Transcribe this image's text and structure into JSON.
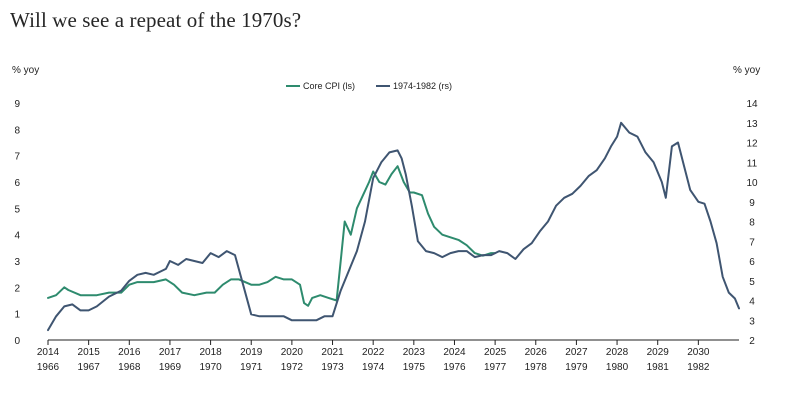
{
  "title": "Will we see a repeat of the 1970s?",
  "colors": {
    "core_cpi": "#2e8b6e",
    "seventies": "#3f5571",
    "axis": "#222222"
  },
  "chart_data": {
    "type": "line",
    "title": "Will we see a repeat of the 1970s?",
    "xlabel": "",
    "ylabel_left": "% yoy",
    "ylabel_right": "% yoy",
    "x_top_ticks": [
      "2014",
      "2015",
      "2016",
      "2017",
      "2018",
      "2019",
      "2020",
      "2021",
      "2022",
      "2023",
      "2024",
      "2025",
      "2026",
      "2027",
      "2028",
      "2029",
      "2030"
    ],
    "x_bottom_ticks": [
      "1966",
      "1967",
      "1968",
      "1969",
      "1970",
      "1971",
      "1972",
      "1973",
      "1974",
      "1975",
      "1976",
      "1977",
      "1978",
      "1979",
      "1980",
      "1981",
      "1982"
    ],
    "xlim": [
      2014,
      2031.0
    ],
    "ylim_left": [
      0,
      9
    ],
    "ylim_right": [
      2,
      14
    ],
    "yticks_left": [
      "0",
      "1",
      "2",
      "3",
      "4",
      "5",
      "6",
      "7",
      "8",
      "9"
    ],
    "yticks_right": [
      "2",
      "3",
      "4",
      "5",
      "6",
      "7",
      "8",
      "9",
      "10",
      "11",
      "12",
      "13",
      "14"
    ],
    "legend_position": "top",
    "grid": false,
    "series": [
      {
        "name": "Core CPI (ls)",
        "axis": "left",
        "x": [
          2014.0,
          2014.2,
          2014.4,
          2014.5,
          2014.8,
          2015.0,
          2015.2,
          2015.5,
          2015.8,
          2016.0,
          2016.2,
          2016.4,
          2016.6,
          2016.9,
          2017.1,
          2017.3,
          2017.6,
          2017.9,
          2018.1,
          2018.3,
          2018.5,
          2018.7,
          2019.0,
          2019.2,
          2019.4,
          2019.6,
          2019.8,
          2020.0,
          2020.2,
          2020.3,
          2020.4,
          2020.5,
          2020.7,
          2020.9,
          2021.1,
          2021.2,
          2021.3,
          2021.45,
          2021.6,
          2021.75,
          2021.9,
          2022.0,
          2022.15,
          2022.3,
          2022.45,
          2022.6,
          2022.75,
          2022.9,
          2023.0,
          2023.2,
          2023.35,
          2023.5,
          2023.7,
          2023.9,
          2024.1,
          2024.3,
          2024.5,
          2024.7,
          2024.9,
          2025.0
        ],
        "values": [
          1.6,
          1.7,
          2.0,
          1.9,
          1.7,
          1.7,
          1.7,
          1.8,
          1.8,
          2.1,
          2.2,
          2.2,
          2.2,
          2.3,
          2.1,
          1.8,
          1.7,
          1.8,
          1.8,
          2.1,
          2.3,
          2.3,
          2.1,
          2.1,
          2.2,
          2.4,
          2.3,
          2.3,
          2.1,
          1.4,
          1.3,
          1.6,
          1.7,
          1.6,
          1.5,
          3.0,
          4.5,
          4.0,
          5.0,
          5.5,
          6.0,
          6.4,
          6.0,
          5.9,
          6.3,
          6.6,
          6.0,
          5.6,
          5.6,
          5.5,
          4.8,
          4.3,
          4.0,
          3.9,
          3.8,
          3.6,
          3.3,
          3.2,
          3.3,
          3.3
        ]
      },
      {
        "name": "1974-1982 (rs)",
        "axis": "right",
        "x": [
          2014.0,
          2014.2,
          2014.4,
          2014.6,
          2014.8,
          2015.0,
          2015.2,
          2015.5,
          2015.8,
          2016.0,
          2016.2,
          2016.4,
          2016.6,
          2016.8,
          2016.9,
          2017.0,
          2017.2,
          2017.4,
          2017.6,
          2017.8,
          2018.0,
          2018.2,
          2018.4,
          2018.6,
          2018.8,
          2019.0,
          2019.2,
          2019.5,
          2019.8,
          2020.0,
          2020.2,
          2020.4,
          2020.6,
          2020.8,
          2021.0,
          2021.2,
          2021.4,
          2021.6,
          2021.8,
          2022.0,
          2022.2,
          2022.4,
          2022.6,
          2022.7,
          2022.8,
          2022.95,
          2023.1,
          2023.3,
          2023.5,
          2023.7,
          2023.9,
          2024.1,
          2024.3,
          2024.5,
          2024.7,
          2024.9,
          2025.1,
          2025.3,
          2025.5,
          2025.7,
          2025.9,
          2026.1,
          2026.3,
          2026.5,
          2026.7,
          2026.9,
          2027.1,
          2027.3,
          2027.5,
          2027.7,
          2027.85,
          2028.0,
          2028.1,
          2028.3,
          2028.5,
          2028.7,
          2028.9,
          2029.1,
          2029.2,
          2029.35,
          2029.5,
          2029.65,
          2029.8,
          2030.0,
          2030.15,
          2030.3,
          2030.45,
          2030.6,
          2030.75,
          2030.9,
          2031.0
        ],
        "values": [
          2.5,
          3.2,
          3.7,
          3.8,
          3.5,
          3.5,
          3.7,
          4.2,
          4.5,
          5.0,
          5.3,
          5.4,
          5.3,
          5.5,
          5.6,
          6.0,
          5.8,
          6.1,
          6.0,
          5.9,
          6.4,
          6.2,
          6.5,
          6.3,
          4.8,
          3.3,
          3.2,
          3.2,
          3.2,
          3.0,
          3.0,
          3.0,
          3.0,
          3.2,
          3.2,
          4.5,
          5.5,
          6.5,
          8.0,
          10.2,
          11.0,
          11.5,
          11.6,
          11.2,
          10.4,
          8.8,
          7.0,
          6.5,
          6.4,
          6.2,
          6.4,
          6.5,
          6.5,
          6.2,
          6.3,
          6.3,
          6.5,
          6.4,
          6.1,
          6.6,
          6.9,
          7.5,
          8.0,
          8.8,
          9.2,
          9.4,
          9.8,
          10.3,
          10.6,
          11.2,
          11.8,
          12.3,
          13.0,
          12.5,
          12.3,
          11.5,
          11.0,
          10.0,
          9.2,
          11.8,
          12.0,
          10.8,
          9.6,
          9.0,
          8.9,
          8.0,
          6.9,
          5.2,
          4.4,
          4.1,
          3.6
        ]
      }
    ]
  }
}
